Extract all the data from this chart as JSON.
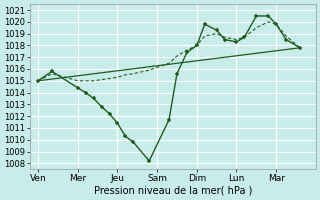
{
  "xlabel": "Pression niveau de la mer( hPa )",
  "background_color": "#c8ecea",
  "grid_color": "#ffffff",
  "line_color": "#1e5c1e",
  "ylim": [
    1007.5,
    1021.5
  ],
  "yticks": [
    1008,
    1009,
    1010,
    1011,
    1012,
    1013,
    1014,
    1015,
    1016,
    1017,
    1018,
    1019,
    1020,
    1021
  ],
  "xtick_labels": [
    "Ven",
    "Mer",
    "Jeu",
    "Sam",
    "Dim",
    "Lun",
    "Mar"
  ],
  "xtick_positions": [
    0,
    1,
    2,
    3,
    4,
    5,
    6
  ],
  "xlim": [
    -0.2,
    7.0
  ],
  "main_x": [
    0,
    0.35,
    1.0,
    1.2,
    1.4,
    1.6,
    1.8,
    2.0,
    2.2,
    2.4,
    2.8,
    3.3,
    3.5,
    3.75,
    4.0,
    4.2,
    4.5,
    4.7,
    5.0,
    5.2,
    5.5,
    5.8,
    6.0,
    6.25,
    6.6
  ],
  "main_y": [
    1015,
    1015.8,
    1014.4,
    1014.0,
    1013.5,
    1012.8,
    1012.2,
    1011.4,
    1010.3,
    1009.8,
    1008.2,
    1011.7,
    1015.6,
    1017.4,
    1018.0,
    1019.8,
    1019.3,
    1018.5,
    1018.3,
    1018.7,
    1020.5,
    1020.5,
    1019.8,
    1018.5,
    1017.8
  ],
  "trend_x": [
    0,
    6.6
  ],
  "trend_y": [
    1015.0,
    1017.8
  ],
  "upper_x": [
    0,
    0.35,
    1.0,
    1.2,
    1.4,
    1.6,
    1.8,
    2.0,
    2.2,
    2.4,
    2.8,
    3.3,
    3.5,
    3.75,
    4.0,
    4.2,
    4.5,
    4.7,
    5.0,
    5.2,
    5.5,
    5.8,
    6.0,
    6.25,
    6.6
  ],
  "upper_y": [
    1015,
    1015.6,
    1015.0,
    1015.0,
    1015.0,
    1015.1,
    1015.2,
    1015.3,
    1015.5,
    1015.6,
    1015.9,
    1016.5,
    1017.1,
    1017.6,
    1018.0,
    1018.8,
    1019.0,
    1018.7,
    1018.5,
    1018.7,
    1019.5,
    1020.0,
    1019.8,
    1018.8,
    1017.8
  ]
}
